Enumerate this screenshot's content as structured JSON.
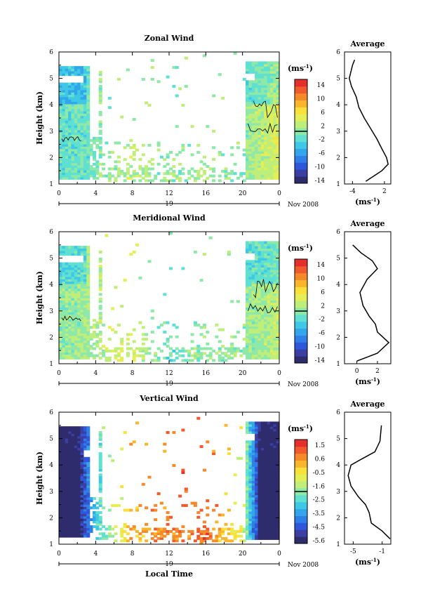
{
  "x_axis": {
    "tick_labels": [
      "0",
      "4",
      "8",
      "12",
      "16",
      "20",
      "0"
    ],
    "day_label": "19",
    "month_label": "Nov 2008",
    "xlabel": "Local Time"
  },
  "y_axis": {
    "ylabel": "Height (km)",
    "tick_labels": [
      "1",
      "2",
      "3",
      "4",
      "5",
      "6"
    ]
  },
  "colors": {
    "cmap": [
      "#2f2c6e",
      "#3b3fa3",
      "#2e57d9",
      "#2f7fe6",
      "#33a5ea",
      "#3fc8e6",
      "#5fe0d0",
      "#8ee8a8",
      "#bfee7a",
      "#e4ef55",
      "#f8e13a",
      "#f9b52c",
      "#f68a2a",
      "#f05a2c",
      "#e52f2a"
    ],
    "profile_line": "#000000",
    "contour_line": "#000000"
  },
  "chart_data": [
    {
      "type": "heatmap",
      "title": "Zonal Wind",
      "xlabel": "Local Time",
      "ylabel": "Height (km)",
      "xlim": [
        0,
        24
      ],
      "ylim": [
        1,
        6
      ],
      "colorbar": {
        "unit": "(ms",
        "unit_exp": "-1",
        "unit_close": ")",
        "ticks": [
          "14",
          "10",
          "6",
          "2",
          "-2",
          "-6",
          "-10",
          "-14"
        ],
        "range": [
          -16,
          16
        ]
      },
      "value_by_time": [
        {
          "t": 0,
          "v": -2
        },
        {
          "t": 3,
          "v": -1.5
        },
        {
          "t": 5,
          "v": 0
        },
        {
          "t": 8,
          "v": 2
        },
        {
          "t": 12,
          "v": 0
        },
        {
          "t": 16,
          "v": 1
        },
        {
          "t": 20,
          "v": 0
        },
        {
          "t": 22,
          "v": 2
        },
        {
          "t": 24,
          "v": 4
        }
      ],
      "average_profile": {
        "title": "Average",
        "xlabel": "(ms",
        "xlabel_exp": "-1",
        "xlabel_close": ")",
        "x_ticks": [
          "-4",
          "2"
        ],
        "x_tick_values": [
          -4,
          2
        ],
        "xlim": [
          -5.5,
          3.2
        ],
        "points": [
          {
            "v": -1.5,
            "z": 1.1
          },
          {
            "v": 0.0,
            "z": 1.3
          },
          {
            "v": 1.5,
            "z": 1.5
          },
          {
            "v": 2.7,
            "z": 1.75
          },
          {
            "v": 2.4,
            "z": 2.0
          },
          {
            "v": 1.6,
            "z": 2.3
          },
          {
            "v": 0.6,
            "z": 2.7
          },
          {
            "v": -0.6,
            "z": 3.1
          },
          {
            "v": -1.8,
            "z": 3.5
          },
          {
            "v": -2.8,
            "z": 3.9
          },
          {
            "v": -3.3,
            "z": 4.3
          },
          {
            "v": -4.2,
            "z": 4.7
          },
          {
            "v": -4.6,
            "z": 5.0
          },
          {
            "v": -4.0,
            "z": 5.5
          },
          {
            "v": -3.6,
            "z": 5.7
          }
        ]
      }
    },
    {
      "type": "heatmap",
      "title": "Meridional Wind",
      "xlabel": "Local Time",
      "ylabel": "Height (km)",
      "xlim": [
        0,
        24
      ],
      "ylim": [
        1,
        6
      ],
      "colorbar": {
        "unit": "(ms",
        "unit_exp": "-1",
        "unit_close": ")",
        "ticks": [
          "14",
          "10",
          "6",
          "2",
          "-2",
          "-6",
          "-10",
          "-14"
        ],
        "range": [
          -16,
          16
        ]
      },
      "value_by_time": [
        {
          "t": 0,
          "v": 0
        },
        {
          "t": 3,
          "v": 1
        },
        {
          "t": 5,
          "v": 2
        },
        {
          "t": 8,
          "v": 3
        },
        {
          "t": 12,
          "v": -2
        },
        {
          "t": 16,
          "v": 1
        },
        {
          "t": 20,
          "v": 0
        },
        {
          "t": 22,
          "v": 1
        },
        {
          "t": 24,
          "v": 2
        }
      ],
      "average_profile": {
        "title": "Average",
        "xlabel": "(ms",
        "xlabel_exp": "-1",
        "xlabel_close": ")",
        "x_ticks": [
          "0",
          "2"
        ],
        "x_tick_values": [
          0,
          2
        ],
        "xlim": [
          -1.2,
          3.3
        ],
        "points": [
          {
            "v": 0.0,
            "z": 1.1
          },
          {
            "v": 2.0,
            "z": 1.4
          },
          {
            "v": 3.1,
            "z": 1.8
          },
          {
            "v": 2.0,
            "z": 2.2
          },
          {
            "v": 1.8,
            "z": 2.5
          },
          {
            "v": 1.2,
            "z": 2.8
          },
          {
            "v": 0.6,
            "z": 3.2
          },
          {
            "v": 0.3,
            "z": 3.7
          },
          {
            "v": 1.0,
            "z": 4.2
          },
          {
            "v": 2.0,
            "z": 4.6
          },
          {
            "v": 1.5,
            "z": 4.9
          },
          {
            "v": 0.4,
            "z": 5.2
          },
          {
            "v": -0.4,
            "z": 5.5
          }
        ]
      }
    },
    {
      "type": "heatmap",
      "title": "Vertical Wind",
      "xlabel": "Local Time",
      "ylabel": "Height (km)",
      "xlim": [
        0,
        24
      ],
      "ylim": [
        1,
        6
      ],
      "colorbar": {
        "unit": "(ms",
        "unit_exp": "-1",
        "unit_close": ")",
        "ticks": [
          "1.5",
          "0.6",
          "-0.5",
          "-1.6",
          "-2.5",
          "-3.5",
          "-4.5",
          "-5.6"
        ],
        "range": [
          -6.1,
          2.0
        ]
      },
      "value_by_time": [
        {
          "t": 0,
          "v": -6
        },
        {
          "t": 2,
          "v": -6
        },
        {
          "t": 4,
          "v": -3
        },
        {
          "t": 8,
          "v": 0.2
        },
        {
          "t": 12,
          "v": 0.8
        },
        {
          "t": 16,
          "v": 1.0
        },
        {
          "t": 20,
          "v": -1
        },
        {
          "t": 22,
          "v": -6
        },
        {
          "t": 24,
          "v": -6
        }
      ],
      "average_profile": {
        "title": "Average",
        "xlabel": "(ms",
        "xlabel_exp": "-1",
        "xlabel_close": ")",
        "x_ticks": [
          "-5",
          "-1"
        ],
        "x_tick_values": [
          -5,
          -1
        ],
        "xlim": [
          -6.2,
          0.2
        ],
        "points": [
          {
            "v": 0.1,
            "z": 1.2
          },
          {
            "v": -1.0,
            "z": 1.5
          },
          {
            "v": -2.5,
            "z": 1.8
          },
          {
            "v": -2.8,
            "z": 2.2
          },
          {
            "v": -3.3,
            "z": 2.5
          },
          {
            "v": -4.3,
            "z": 2.8
          },
          {
            "v": -5.3,
            "z": 3.2
          },
          {
            "v": -5.7,
            "z": 3.6
          },
          {
            "v": -5.3,
            "z": 4.0
          },
          {
            "v": -4.0,
            "z": 4.2
          },
          {
            "v": -2.0,
            "z": 4.5
          },
          {
            "v": -1.3,
            "z": 4.9
          },
          {
            "v": -1.1,
            "z": 5.5
          }
        ]
      }
    }
  ]
}
